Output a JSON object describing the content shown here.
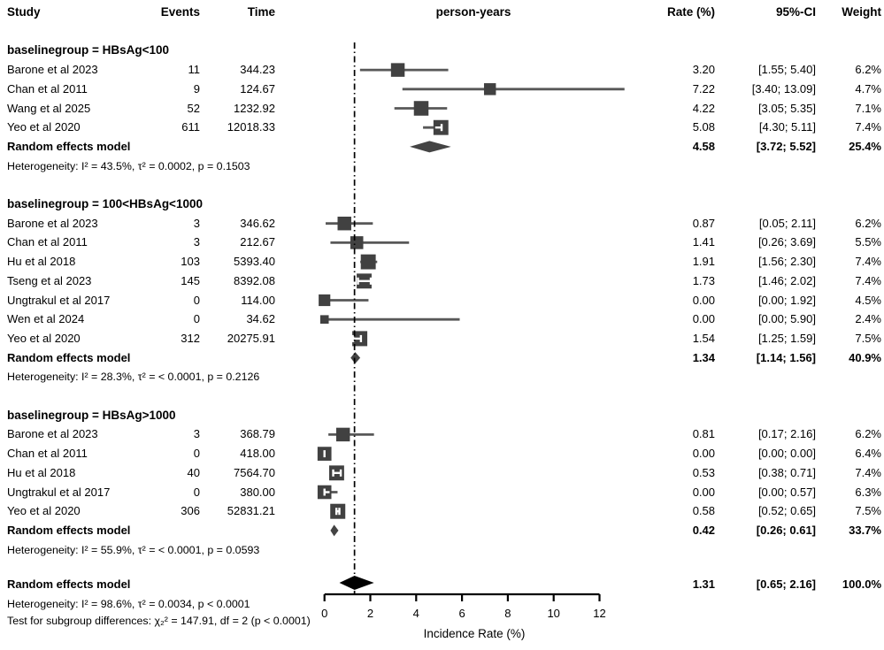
{
  "header": {
    "study": "Study",
    "events": "Events",
    "time": "Time",
    "plot": "person-years",
    "rate": "Rate (%)",
    "ci": "95%-CI",
    "weight": "Weight"
  },
  "axis": {
    "label": "Incidence Rate (%)",
    "ticks": [
      0,
      2,
      4,
      6,
      8,
      10,
      12
    ],
    "min": 0,
    "max": 12
  },
  "colors": {
    "square": "#414141",
    "ci_line": "#585858",
    "subgroup_diamond": "#444444",
    "overall_diamond": "#000000",
    "reference_line": "#000000",
    "axis": "#000000",
    "text": "#000000"
  },
  "chart_data": {
    "type": "forest",
    "xlabel": "Incidence Rate (%)",
    "xlim": [
      0,
      12
    ],
    "reference_line": 1.31,
    "groups": [
      {
        "title": "baselinegroup = HBsAg<100",
        "studies": [
          {
            "name": "Barone et al 2023",
            "events": "11",
            "time": "344.23",
            "rate": 3.2,
            "lo": 1.55,
            "hi": 5.4,
            "weight": 6.2,
            "rate_text": "3.20",
            "ci_text": "[1.55; 5.40]",
            "weight_text": "6.2%",
            "inner_ci": false
          },
          {
            "name": "Chan et al 2011",
            "events": "9",
            "time": "124.67",
            "rate": 7.22,
            "lo": 3.4,
            "hi": 13.09,
            "weight": 4.7,
            "rate_text": "7.22",
            "ci_text": "[3.40; 13.09]",
            "weight_text": "4.7%",
            "inner_ci": false
          },
          {
            "name": "Wang et al 2025",
            "events": "52",
            "time": "1232.92",
            "rate": 4.22,
            "lo": 3.05,
            "hi": 5.35,
            "weight": 7.1,
            "rate_text": "4.22",
            "ci_text": "[3.05; 5.35]",
            "weight_text": "7.1%",
            "inner_ci": false
          },
          {
            "name": "Yeo et al 2020",
            "events": "611",
            "time": "12018.33",
            "rate": 5.08,
            "lo": 4.3,
            "hi": 5.11,
            "weight": 7.4,
            "rate_text": "5.08",
            "ci_text": "[4.30; 5.11]",
            "weight_text": "7.4%",
            "inner_ci": true
          }
        ],
        "summary": {
          "label": "Random effects model",
          "rate": 4.58,
          "lo": 3.72,
          "hi": 5.52,
          "rate_text": "4.58",
          "ci_text": "[3.72; 5.52]",
          "weight_text": "25.4%"
        },
        "heterogeneity": "Heterogeneity: I² = 43.5%, τ² = 0.0002, p = 0.1503"
      },
      {
        "title": "baselinegroup = 100<HBsAg<1000",
        "studies": [
          {
            "name": "Barone et al 2023",
            "events": "3",
            "time": "346.62",
            "rate": 0.87,
            "lo": 0.05,
            "hi": 2.11,
            "weight": 6.2,
            "rate_text": "0.87",
            "ci_text": "[0.05; 2.11]",
            "weight_text": "6.2%",
            "inner_ci": false
          },
          {
            "name": "Chan et al 2011",
            "events": "3",
            "time": "212.67",
            "rate": 1.41,
            "lo": 0.26,
            "hi": 3.69,
            "weight": 5.5,
            "rate_text": "1.41",
            "ci_text": "[0.26; 3.69]",
            "weight_text": "5.5%",
            "inner_ci": false
          },
          {
            "name": "Hu et al 2018",
            "events": "103",
            "time": "5393.40",
            "rate": 1.91,
            "lo": 1.56,
            "hi": 2.3,
            "weight": 7.4,
            "rate_text": "1.91",
            "ci_text": "[1.56; 2.30]",
            "weight_text": "7.4%",
            "inner_ci": false
          },
          {
            "name": "Tseng et al 2023",
            "events": "145",
            "time": "8392.08",
            "rate": 1.73,
            "lo": 1.46,
            "hi": 2.02,
            "weight": 7.4,
            "rate_text": "1.73",
            "ci_text": "[1.46; 2.02]",
            "weight_text": "7.4%",
            "inner_ci": true
          },
          {
            "name": "Ungtrakul et al 2017",
            "events": "0",
            "time": "114.00",
            "rate": 0.0,
            "lo": 0.0,
            "hi": 1.92,
            "weight": 4.5,
            "rate_text": "0.00",
            "ci_text": "[0.00; 1.92]",
            "weight_text": "4.5%",
            "inner_ci": false
          },
          {
            "name": "Wen et al 2024",
            "events": "0",
            "time": "34.62",
            "rate": 0.0,
            "lo": 0.0,
            "hi": 5.9,
            "weight": 2.4,
            "rate_text": "0.00",
            "ci_text": "[0.00; 5.90]",
            "weight_text": "2.4%",
            "inner_ci": false
          },
          {
            "name": "Yeo et al 2020",
            "events": "312",
            "time": "20275.91",
            "rate": 1.54,
            "lo": 1.25,
            "hi": 1.59,
            "weight": 7.5,
            "rate_text": "1.54",
            "ci_text": "[1.25; 1.59]",
            "weight_text": "7.5%",
            "inner_ci": true
          }
        ],
        "summary": {
          "label": "Random effects model",
          "rate": 1.34,
          "lo": 1.14,
          "hi": 1.56,
          "rate_text": "1.34",
          "ci_text": "[1.14; 1.56]",
          "weight_text": "40.9%"
        },
        "heterogeneity": "Heterogeneity: I² = 28.3%, τ² = < 0.0001, p = 0.2126"
      },
      {
        "title": "baselinegroup = HBsAg>1000",
        "studies": [
          {
            "name": "Barone et al 2023",
            "events": "3",
            "time": "368.79",
            "rate": 0.81,
            "lo": 0.17,
            "hi": 2.16,
            "weight": 6.2,
            "rate_text": "0.81",
            "ci_text": "[0.17; 2.16]",
            "weight_text": "6.2%",
            "inner_ci": false
          },
          {
            "name": "Chan et al 2011",
            "events": "0",
            "time": "418.00",
            "rate": 0.0,
            "lo": 0.0,
            "hi": 0.0,
            "weight": 6.4,
            "rate_text": "0.00",
            "ci_text": "[0.00; 0.00]",
            "weight_text": "6.4%",
            "inner_ci": true
          },
          {
            "name": "Hu et al 2018",
            "events": "40",
            "time": "7564.70",
            "rate": 0.53,
            "lo": 0.38,
            "hi": 0.71,
            "weight": 7.4,
            "rate_text": "0.53",
            "ci_text": "[0.38; 0.71]",
            "weight_text": "7.4%",
            "inner_ci": true
          },
          {
            "name": "Ungtrakul et al 2017",
            "events": "0",
            "time": "380.00",
            "rate": 0.0,
            "lo": 0.0,
            "hi": 0.57,
            "weight": 6.3,
            "rate_text": "0.00",
            "ci_text": "[0.00; 0.57]",
            "weight_text": "6.3%",
            "inner_ci": true
          },
          {
            "name": "Yeo et al 2020",
            "events": "306",
            "time": "52831.21",
            "rate": 0.58,
            "lo": 0.52,
            "hi": 0.65,
            "weight": 7.5,
            "rate_text": "0.58",
            "ci_text": "[0.52; 0.65]",
            "weight_text": "7.5%",
            "inner_ci": true
          }
        ],
        "summary": {
          "label": "Random effects model",
          "rate": 0.42,
          "lo": 0.26,
          "hi": 0.61,
          "rate_text": "0.42",
          "ci_text": "[0.26; 0.61]",
          "weight_text": "33.7%"
        },
        "heterogeneity": "Heterogeneity: I² = 55.9%, τ² = < 0.0001, p = 0.0593"
      }
    ],
    "overall": {
      "label": "Random effects model",
      "rate": 1.31,
      "lo": 0.65,
      "hi": 2.16,
      "rate_text": "1.31",
      "ci_text": "[0.65; 2.16]",
      "weight_text": "100.0%"
    },
    "overall_heterogeneity": "Heterogeneity: I² = 98.6%, τ² = 0.0034, p < 0.0001",
    "subgroup_test": "Test for subgroup differences: χ₂² = 147.91, df = 2 (p < 0.0001)"
  }
}
